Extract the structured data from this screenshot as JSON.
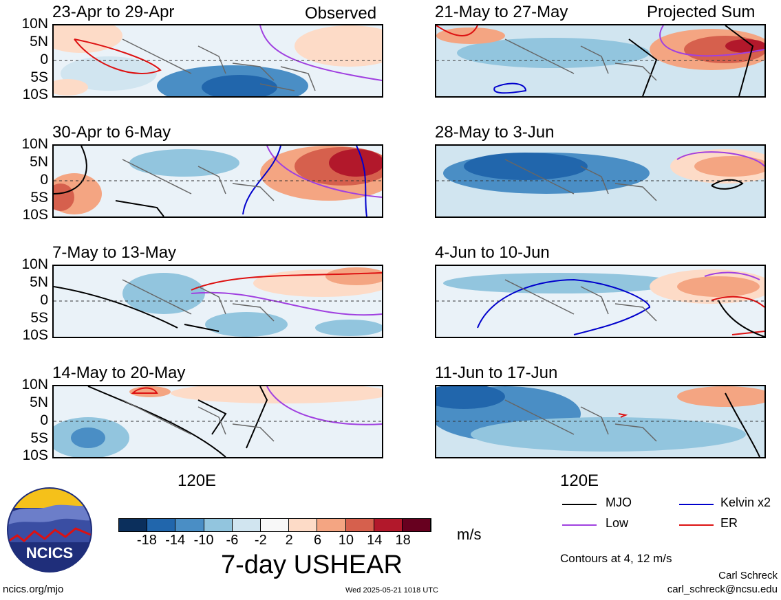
{
  "header": {
    "observed_label": "Observed",
    "projected_label": "Projected Sum"
  },
  "y_ticks": [
    "10N",
    "5N",
    "0",
    "5S",
    "10S"
  ],
  "x_tick": "120E",
  "panels": [
    {
      "title": "23-Apr to 29-Apr"
    },
    {
      "title": "30-Apr to 6-May"
    },
    {
      "title": "7-May to 13-May"
    },
    {
      "title": "14-May to 20-May"
    },
    {
      "title": "21-May to 27-May"
    },
    {
      "title": "28-May to 3-Jun"
    },
    {
      "title": "4-Jun to 10-Jun"
    },
    {
      "title": "11-Jun to 17-Jun"
    }
  ],
  "colorbar": {
    "tick_labels": [
      "-18",
      "-14",
      "-10",
      "-6",
      "-2",
      "2",
      "6",
      "10",
      "14",
      "18"
    ],
    "colors": [
      "#0b2f5c",
      "#2166ac",
      "#4a8ec5",
      "#92c5de",
      "#d1e5f0",
      "#f8f8f8",
      "#fddbc7",
      "#f4a582",
      "#d6604d",
      "#b2182b",
      "#67001f"
    ],
    "units": "m/s"
  },
  "main_title": "7-day USHEAR",
  "legend": {
    "items": [
      {
        "label": "MJO",
        "color": "#000000"
      },
      {
        "label": "Kelvin x2",
        "color": "#0000cc"
      },
      {
        "label": "Low",
        "color": "#a040e0"
      },
      {
        "label": "ER",
        "color": "#dd1111"
      }
    ],
    "contours_note": "Contours at 4, 12 m/s"
  },
  "footer": {
    "logo_text": "NCICS",
    "url": "ncics.org/mjo",
    "timestamp": "Wed 2025-05-21 1018 UTC",
    "author": "Carl Schreck",
    "email": "carl_schreck@ncsu.edu"
  }
}
